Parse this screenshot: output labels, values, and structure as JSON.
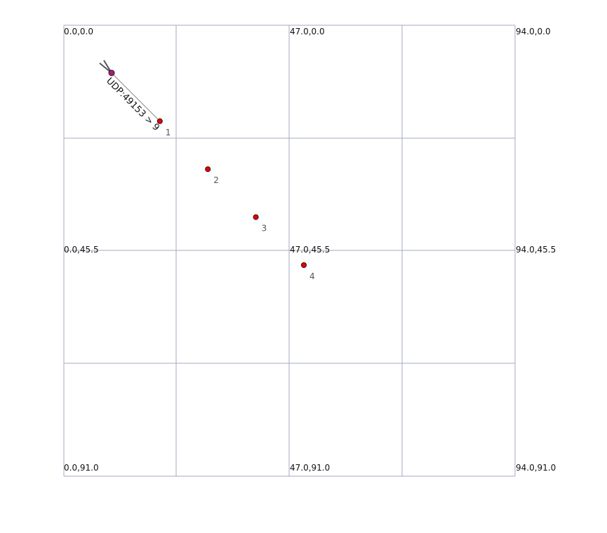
{
  "grid": {
    "x_values": [
      0.0,
      47.0,
      94.0
    ],
    "y_values": [
      0.0,
      45.5,
      91.0
    ],
    "corner_labels": {
      "top_left": "0.0,0.0",
      "top_mid": "47.0,0.0",
      "top_right": "94.0,0.0",
      "mid_left": "0.0,45.5",
      "mid_mid": "47.0,45.5",
      "mid_right": "94.0,45.5",
      "bot_left": "0.0,91.0",
      "bot_mid": "47.0,91.0",
      "bot_right": "94.0,91.0"
    },
    "line_color": "#a6a8c4"
  },
  "nodes": [
    {
      "label": "1",
      "x": 20,
      "y": 20
    },
    {
      "label": "2",
      "x": 30,
      "y": 30
    },
    {
      "label": "3",
      "x": 40,
      "y": 40
    },
    {
      "label": "4",
      "x": 50,
      "y": 50
    }
  ],
  "source": {
    "x": 10,
    "y": 10,
    "icon": "antenna-icon",
    "color": "#a0207a"
  },
  "link": {
    "label": "UDP:49153 > 9"
  },
  "node_color": "#e60000"
}
